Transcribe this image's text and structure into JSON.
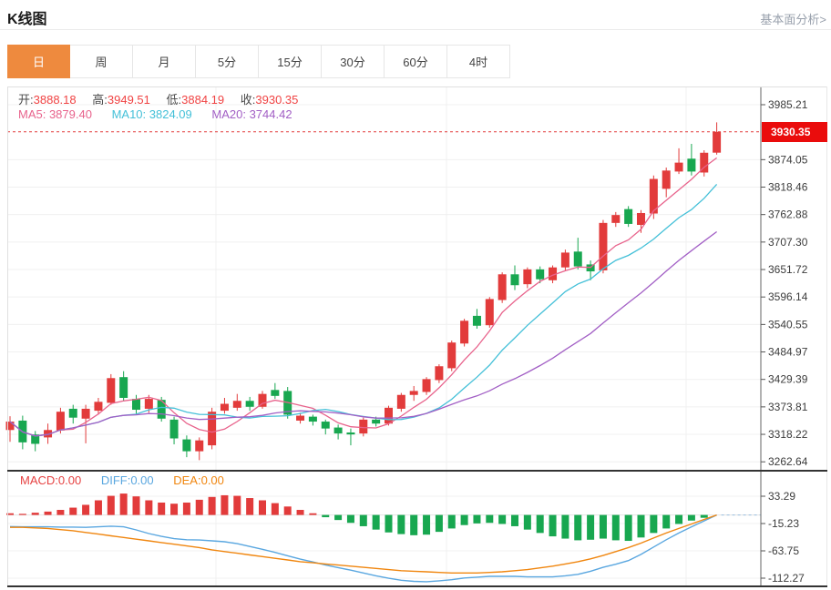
{
  "header": {
    "title": "K线图",
    "link": "基本面分析>"
  },
  "tabs": {
    "items": [
      "日",
      "周",
      "月",
      "5分",
      "15分",
      "30分",
      "60分",
      "4时"
    ],
    "active_index": 0
  },
  "ohlc": {
    "pairs": [
      {
        "label": "开:",
        "value": "3888.18"
      },
      {
        "label": "高:",
        "value": "3949.51"
      },
      {
        "label": "低:",
        "value": "3884.19"
      },
      {
        "label": "收:",
        "value": "3930.35"
      }
    ]
  },
  "ma": {
    "items": [
      {
        "text": "MA5: 3879.40"
      },
      {
        "text": "MA10: 3824.09"
      },
      {
        "text": "MA20: 3744.42"
      }
    ]
  },
  "macd_readout": {
    "macd": "MACD:0.00",
    "diff": "DIFF:0.00",
    "dea": "DEA:0.00"
  },
  "price_tag": "3930.35",
  "colors": {
    "accent_orange": "#ee8a3e",
    "up_red": "#e23b3b",
    "down_green": "#18a750",
    "ma5_pink": "#e8638c",
    "ma10_cyan": "#44c0d8",
    "ma20_purple": "#a25fc5",
    "diff_blue": "#5aa7e0",
    "dea_orange": "#f0860f",
    "ohlc_value_red": "#f04343",
    "label_gray": "#4a4a4a",
    "price_tag_red": "#ea0c0c",
    "dashed_red": "#e23b3b",
    "axis_text": "#3c3c3c",
    "grid": "#f0f0f0"
  },
  "chart_data": {
    "type": "candlestick",
    "panels": [
      "price-with-ma",
      "macd"
    ],
    "legend_position": "top-left-overlay",
    "grid": true,
    "main": {
      "y_ticks": [
        3985.21,
        3874.05,
        3818.46,
        3762.88,
        3707.3,
        3651.72,
        3596.14,
        3540.55,
        3484.97,
        3429.39,
        3373.81,
        3318.22,
        3262.64
      ],
      "current_price": 3930.35,
      "ma_periods": [
        5,
        10,
        20
      ],
      "ma_last_values": {
        "ma5": 3879.4,
        "ma10": 3824.09,
        "ma20": 3744.42
      },
      "ohlc_last": {
        "open": 3888.18,
        "high": 3949.51,
        "low": 3884.19,
        "close": 3930.35
      },
      "candles_ohlc": [
        [
          3327,
          3355,
          3303,
          3344
        ],
        [
          3346,
          3356,
          3288,
          3302
        ],
        [
          3318,
          3325,
          3284,
          3299
        ],
        [
          3312,
          3340,
          3299,
          3327
        ],
        [
          3326,
          3372,
          3320,
          3364
        ],
        [
          3370,
          3378,
          3340,
          3352
        ],
        [
          3350,
          3378,
          3300,
          3370
        ],
        [
          3366,
          3392,
          3358,
          3384
        ],
        [
          3382,
          3440,
          3378,
          3432
        ],
        [
          3434,
          3446,
          3386,
          3392
        ],
        [
          3390,
          3398,
          3360,
          3368
        ],
        [
          3370,
          3398,
          3362,
          3390
        ],
        [
          3388,
          3394,
          3344,
          3350
        ],
        [
          3348,
          3354,
          3298,
          3310
        ],
        [
          3308,
          3316,
          3272,
          3284
        ],
        [
          3284,
          3312,
          3266,
          3306
        ],
        [
          3296,
          3372,
          3288,
          3364
        ],
        [
          3366,
          3392,
          3360,
          3380
        ],
        [
          3372,
          3400,
          3366,
          3386
        ],
        [
          3386,
          3394,
          3366,
          3374
        ],
        [
          3374,
          3406,
          3370,
          3400
        ],
        [
          3408,
          3422,
          3390,
          3396
        ],
        [
          3406,
          3414,
          3350,
          3358
        ],
        [
          3346,
          3362,
          3340,
          3356
        ],
        [
          3354,
          3358,
          3336,
          3344
        ],
        [
          3344,
          3348,
          3318,
          3330
        ],
        [
          3332,
          3338,
          3308,
          3320
        ],
        [
          3322,
          3330,
          3296,
          3318
        ],
        [
          3320,
          3352,
          3314,
          3348
        ],
        [
          3348,
          3354,
          3334,
          3340
        ],
        [
          3340,
          3376,
          3336,
          3372
        ],
        [
          3370,
          3402,
          3364,
          3398
        ],
        [
          3398,
          3416,
          3386,
          3406
        ],
        [
          3404,
          3434,
          3398,
          3430
        ],
        [
          3428,
          3460,
          3422,
          3456
        ],
        [
          3452,
          3508,
          3446,
          3504
        ],
        [
          3502,
          3552,
          3496,
          3548
        ],
        [
          3558,
          3572,
          3532,
          3538
        ],
        [
          3539,
          3596,
          3534,
          3592
        ],
        [
          3590,
          3646,
          3584,
          3642
        ],
        [
          3642,
          3660,
          3610,
          3620
        ],
        [
          3622,
          3656,
          3614,
          3652
        ],
        [
          3652,
          3658,
          3624,
          3632
        ],
        [
          3630,
          3660,
          3624,
          3656
        ],
        [
          3656,
          3692,
          3650,
          3686
        ],
        [
          3688,
          3716,
          3652,
          3658
        ],
        [
          3662,
          3670,
          3630,
          3648
        ],
        [
          3650,
          3752,
          3644,
          3746
        ],
        [
          3746,
          3768,
          3738,
          3762
        ],
        [
          3774,
          3780,
          3738,
          3744
        ],
        [
          3742,
          3772,
          3726,
          3766
        ],
        [
          3765,
          3842,
          3754,
          3835
        ],
        [
          3815,
          3858,
          3798,
          3852
        ],
        [
          3850,
          3897,
          3845,
          3868
        ],
        [
          3876,
          3906,
          3842,
          3850
        ],
        [
          3848,
          3893,
          3840,
          3888
        ],
        [
          3888.18,
          3949.51,
          3884.19,
          3930.35
        ]
      ]
    },
    "macd": {
      "y_ticks": [
        33.29,
        -15.23,
        -63.75,
        -112.27
      ],
      "last_values": {
        "macd": 0.0,
        "diff": 0.0,
        "dea": 0.0
      },
      "histogram": [
        3,
        2,
        4,
        6,
        9,
        13,
        18,
        26,
        34,
        38,
        33,
        26,
        22,
        20,
        22,
        27,
        32,
        35,
        34,
        30,
        26,
        21,
        15,
        9,
        3,
        -4,
        -9,
        -14,
        -20,
        -26,
        -31,
        -34,
        -36,
        -35,
        -30,
        -24,
        -18,
        -15,
        -14,
        -16,
        -20,
        -26,
        -32,
        -38,
        -42,
        -45,
        -44,
        -42,
        -45,
        -46,
        -40,
        -32,
        -24,
        -16,
        -10,
        -5,
        0
      ],
      "diff": [
        -20.5,
        -21,
        -21,
        -21,
        -21.5,
        -21.5,
        -22,
        -21,
        -20,
        -21,
        -26.5,
        -33,
        -38,
        -42,
        -44,
        -44.5,
        -46,
        -47.5,
        -51,
        -56,
        -61,
        -66.5,
        -72.5,
        -78.5,
        -83.5,
        -89,
        -93.5,
        -98,
        -103,
        -108,
        -112.5,
        -116,
        -118,
        -118.5,
        -117,
        -115,
        -112,
        -110.5,
        -109,
        -109,
        -109,
        -110,
        -110,
        -110,
        -108,
        -105.5,
        -100,
        -93,
        -87.5,
        -81,
        -70,
        -57,
        -44,
        -32,
        -21,
        -10.5,
        0
      ],
      "dea": [
        -22,
        -22,
        -23,
        -24,
        -26,
        -28,
        -31,
        -34,
        -37,
        -40,
        -43,
        -46,
        -49,
        -52,
        -55,
        -58,
        -62,
        -65,
        -68,
        -71,
        -74,
        -77,
        -80,
        -83,
        -85,
        -87,
        -89,
        -91,
        -93,
        -95,
        -97,
        -99,
        -100,
        -101,
        -102,
        -103,
        -103,
        -103,
        -102,
        -101,
        -99,
        -97,
        -94,
        -91,
        -87,
        -83,
        -78,
        -72,
        -65,
        -58,
        -50,
        -41,
        -32,
        -24,
        -16,
        -8,
        0
      ]
    }
  }
}
